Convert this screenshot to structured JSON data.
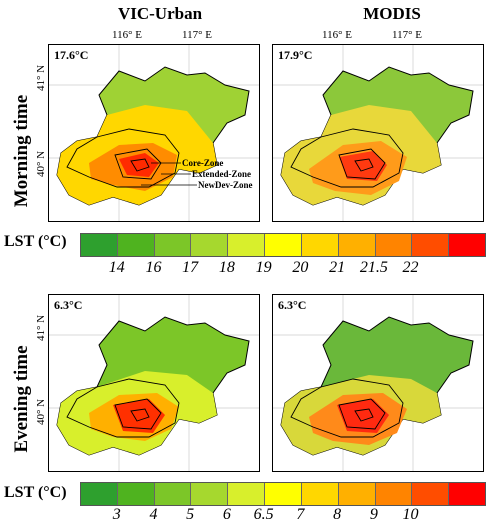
{
  "columns": {
    "left": "VIC-Urban",
    "right": "MODIS"
  },
  "rows": {
    "top": "Morning time",
    "bottom": "Evening time"
  },
  "ticks": {
    "lon1": "116° E",
    "lon2": "117° E",
    "lat1": "41° N",
    "lat2": "40° N"
  },
  "panels": {
    "morning_vic_mean": "17.6°C",
    "morning_modis_mean": "17.9°C",
    "evening_vic_mean": "6.3°C",
    "evening_modis_mean": "6.3°C"
  },
  "zones": {
    "core": "Core-Zone",
    "extended": "Extended-Zone",
    "newdev": "NewDev-Zone"
  },
  "legend_title": "LST (°C)",
  "morning_scale": {
    "labels": [
      "14",
      "16",
      "17",
      "18",
      "19",
      "20",
      "21",
      "21.5",
      "22"
    ],
    "colors": [
      "#2ea02e",
      "#4fb31f",
      "#7cc628",
      "#a6d82e",
      "#d8ef2c",
      "#ffff00",
      "#ffd700",
      "#ffb000",
      "#ff8400",
      "#ff4d00",
      "#ff0000"
    ]
  },
  "evening_scale": {
    "labels": [
      "3",
      "4",
      "5",
      "6",
      "6.5",
      "7",
      "8",
      "9",
      "10"
    ],
    "colors": [
      "#2ea02e",
      "#4fb31f",
      "#7cc628",
      "#a6d82e",
      "#d8ef2c",
      "#ffff00",
      "#ffd700",
      "#ffb000",
      "#ff8400",
      "#ff4d00",
      "#ff0000"
    ]
  }
}
